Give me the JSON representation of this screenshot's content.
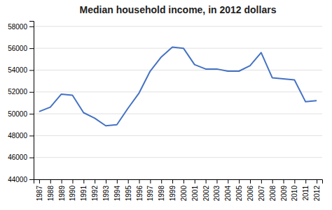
{
  "chart_data": {
    "type": "line",
    "title": "Median household income, in 2012 dollars",
    "x": [
      1987,
      1988,
      1989,
      1990,
      1991,
      1992,
      1993,
      1994,
      1995,
      1996,
      1997,
      1998,
      1999,
      2000,
      2001,
      2002,
      2003,
      2004,
      2005,
      2006,
      2007,
      2008,
      2009,
      2010,
      2011,
      2012
    ],
    "values": [
      50200,
      50600,
      51800,
      51700,
      50100,
      49600,
      48900,
      49000,
      50500,
      51900,
      53900,
      55200,
      56100,
      56000,
      54500,
      54100,
      54100,
      53900,
      53900,
      54400,
      55600,
      53300,
      53200,
      53100,
      51100,
      51200
    ],
    "color": "#4472C4",
    "xlim": [
      1986.5,
      2012.5
    ],
    "xticks": [
      1987,
      1988,
      1989,
      1990,
      1991,
      1992,
      1993,
      1994,
      1995,
      1996,
      1997,
      1998,
      1999,
      2000,
      2001,
      2002,
      2003,
      2004,
      2005,
      2006,
      2007,
      2008,
      2009,
      2010,
      2011,
      2012
    ],
    "ylim": [
      44000,
      58500
    ],
    "yticks": [
      44000,
      46000,
      48000,
      50000,
      52000,
      54000,
      56000,
      58000
    ],
    "grid": true
  }
}
